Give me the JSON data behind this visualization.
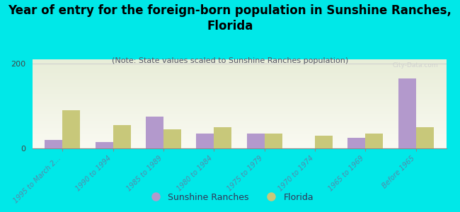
{
  "title": "Year of entry for the foreign-born population in Sunshine Ranches,\nFlorida",
  "subtitle": "(Note: State values scaled to Sunshine Ranches population)",
  "categories": [
    "1995 to March 2...",
    "1990 to 1994",
    "1985 to 1989",
    "1980 to 1984",
    "1975 to 1979",
    "1970 to 1974",
    "1965 to 1969",
    "Before 1965"
  ],
  "sunshine_ranches": [
    20,
    15,
    75,
    35,
    35,
    0,
    25,
    165
  ],
  "florida": [
    90,
    55,
    45,
    50,
    35,
    30,
    35,
    50
  ],
  "sunshine_color": "#b399cc",
  "florida_color": "#c8c87a",
  "background_color": "#00e8e8",
  "plot_bg_top": "#e8edd8",
  "plot_bg_bottom": "#f8f8f0",
  "ylim": [
    0,
    210
  ],
  "bar_width": 0.35,
  "title_fontsize": 12,
  "subtitle_fontsize": 8,
  "watermark": "City-Data.com",
  "tick_label_color": "#5588aa",
  "tick_label_fontsize": 7
}
